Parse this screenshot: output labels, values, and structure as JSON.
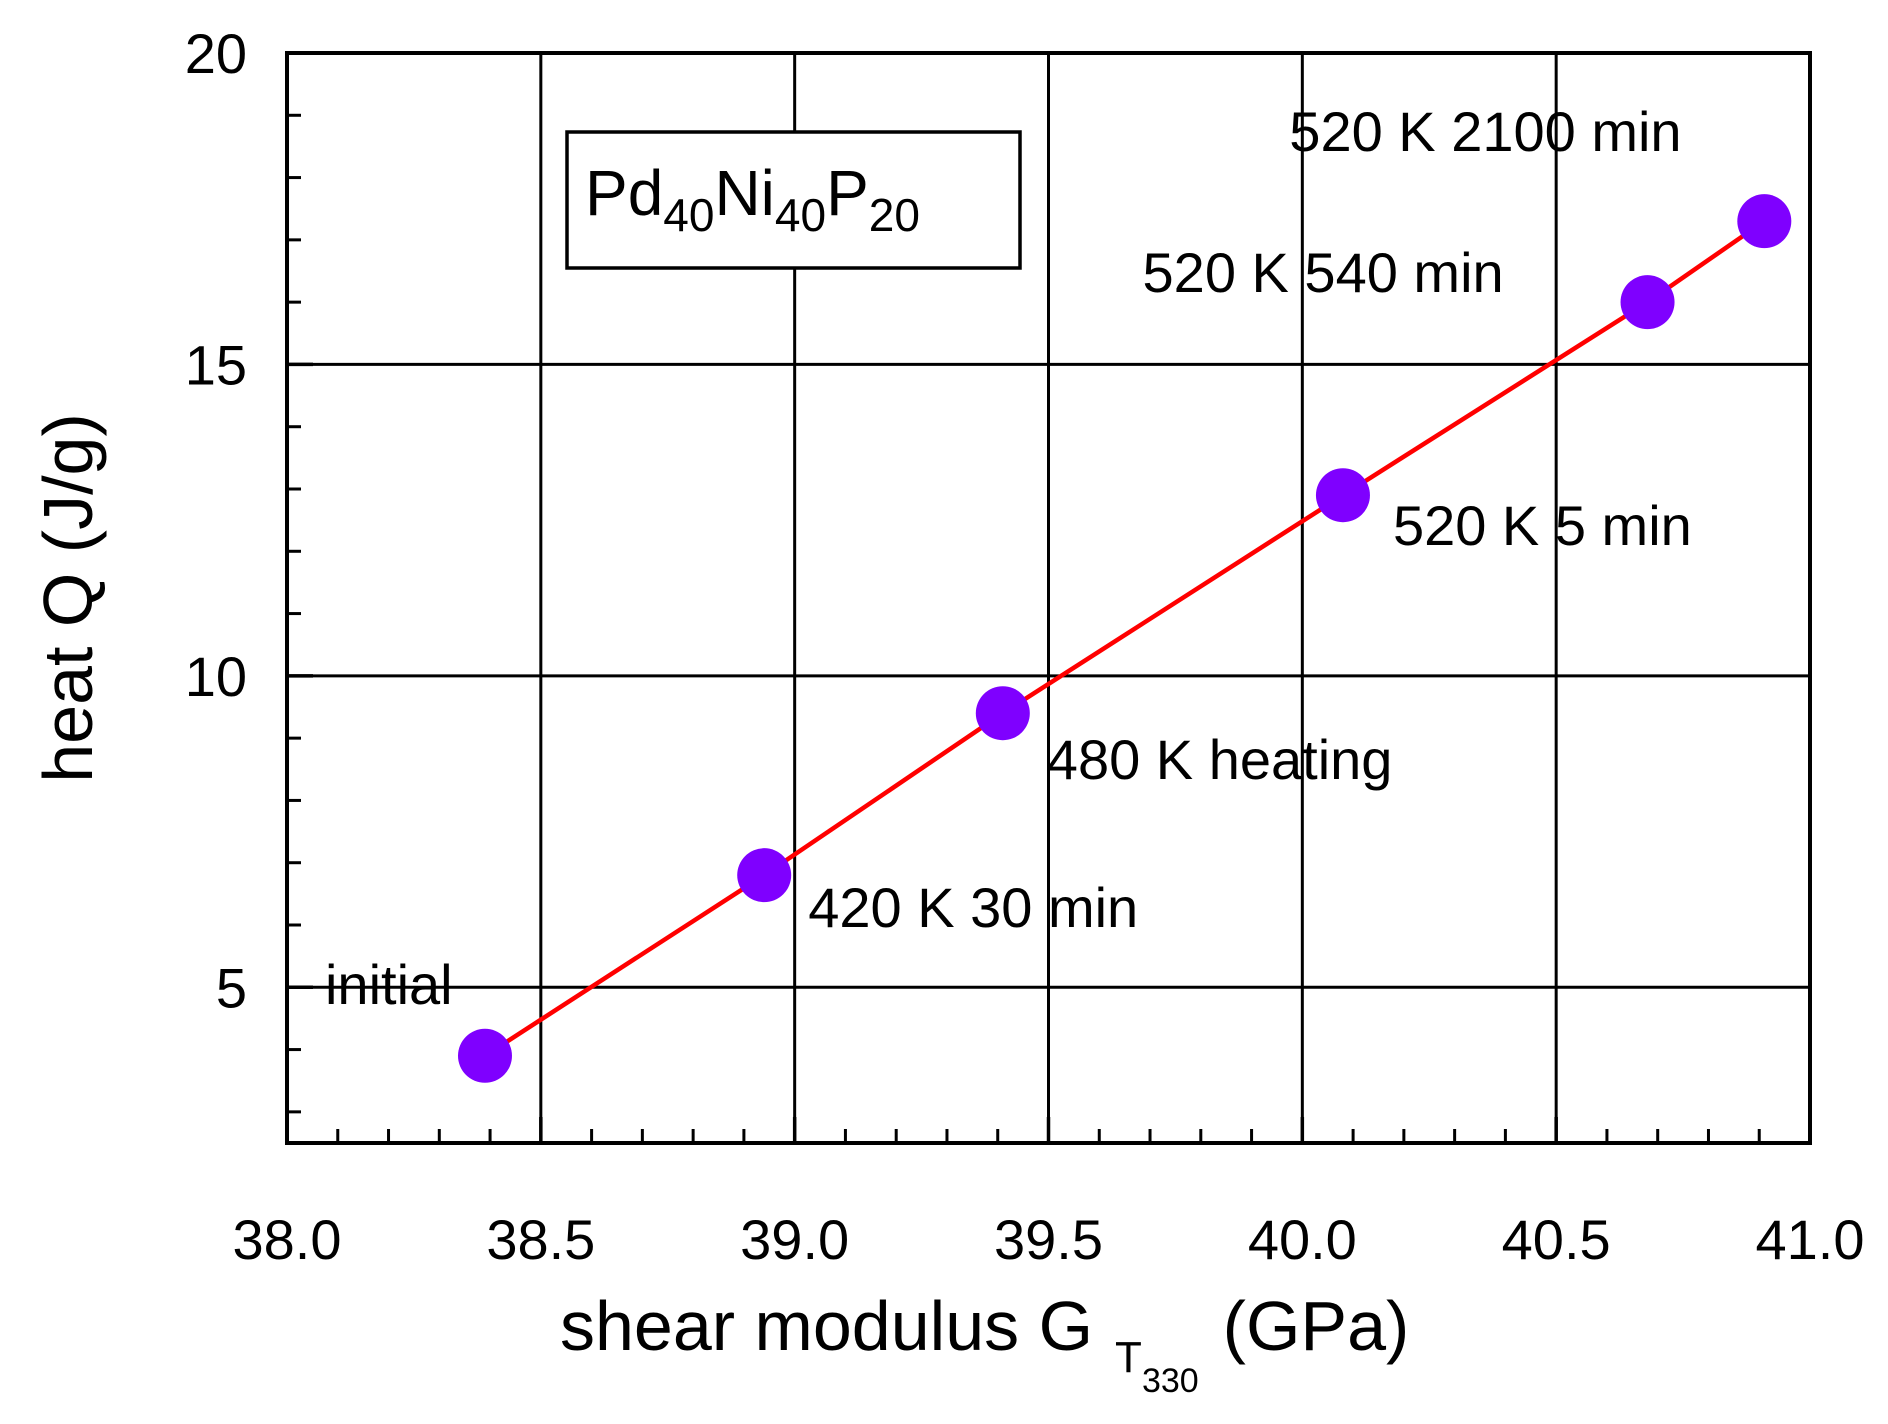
{
  "chart_data": {
    "type": "scatter",
    "title": "",
    "xlabel": {
      "main": "shear modulus G",
      "sub": "T",
      "subsub": "330",
      "unit": "(GPa)"
    },
    "ylabel": "heat Q (J/g)",
    "xlim": [
      38.0,
      41.0
    ],
    "ylim": [
      2.5,
      20
    ],
    "x_ticks": [
      "38.0",
      "38.5",
      "39.0",
      "39.5",
      "40.0",
      "40.5",
      "41.0"
    ],
    "y_ticks": [
      "5",
      "10",
      "15",
      "20"
    ],
    "grid": true,
    "legend_box": {
      "parts": [
        {
          "text": "Pd",
          "sub": false
        },
        {
          "text": "40",
          "sub": true
        },
        {
          "text": "Ni",
          "sub": false
        },
        {
          "text": "40",
          "sub": true
        },
        {
          "text": "P",
          "sub": false
        },
        {
          "text": "20",
          "sub": true
        }
      ]
    },
    "series": [
      {
        "marker_color": "#7f00ff",
        "line_color": "#ff0000",
        "points": [
          {
            "x": 38.39,
            "y": 3.9,
            "label": "initial"
          },
          {
            "x": 38.94,
            "y": 6.8,
            "label": "420 K 30 min"
          },
          {
            "x": 39.41,
            "y": 9.4,
            "label": "480 K heating"
          },
          {
            "x": 40.08,
            "y": 12.9,
            "label": "520 K 5 min"
          },
          {
            "x": 40.68,
            "y": 16.0,
            "label": "520 K 540 min"
          },
          {
            "x": 40.91,
            "y": 17.3,
            "label": "520 K 2100 min"
          }
        ]
      }
    ]
  }
}
